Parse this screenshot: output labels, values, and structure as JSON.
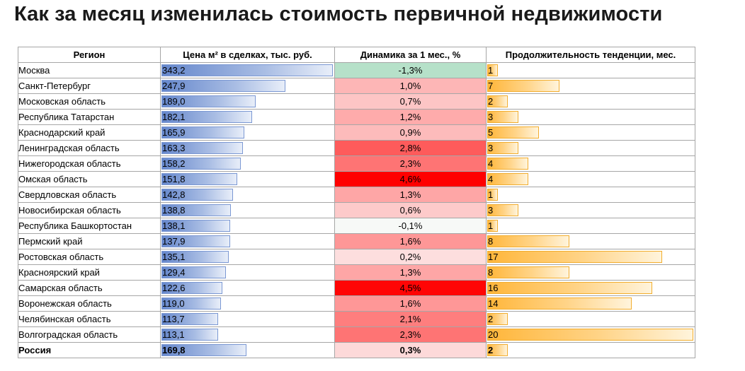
{
  "title": "Как за месяц изменилась стоимость первичной недвижимости",
  "headers": {
    "region": "Регион",
    "price": "Цена м² в сделках, тыс. руб.",
    "dynamics": "Динамика за 1 мес., %",
    "duration": "Продолжительность тенденции, мес."
  },
  "colors": {
    "negative": "#b6e1c9",
    "positive_low": "#fde8e8",
    "positive_high": "#ff0000",
    "price_bar": "#6587cc",
    "duration_bar": "#ffb63a"
  },
  "scales": {
    "price_max": 343.2,
    "duration_max": 20
  },
  "rows": [
    {
      "region": "Москва",
      "price": "343,2",
      "price_value": 343.2,
      "dynamics": "-1,3%",
      "dynamics_value": -1.3,
      "duration": "1"
    },
    {
      "region": "Санкт-Петербург",
      "price": "247,9",
      "price_value": 247.9,
      "dynamics": "1,0%",
      "dynamics_value": 1.0,
      "duration": "7"
    },
    {
      "region": "Московская область",
      "price": "189,0",
      "price_value": 189.0,
      "dynamics": "0,7%",
      "dynamics_value": 0.7,
      "duration": "2"
    },
    {
      "region": "Республика Татарстан",
      "price": "182,1",
      "price_value": 182.1,
      "dynamics": "1,2%",
      "dynamics_value": 1.2,
      "duration": "3"
    },
    {
      "region": "Краснодарский край",
      "price": "165,9",
      "price_value": 165.9,
      "dynamics": "0,9%",
      "dynamics_value": 0.9,
      "duration": "5"
    },
    {
      "region": "Ленинградская область",
      "price": "163,3",
      "price_value": 163.3,
      "dynamics": "2,8%",
      "dynamics_value": 2.8,
      "duration": "3"
    },
    {
      "region": "Нижегородская область",
      "price": "158,2",
      "price_value": 158.2,
      "dynamics": "2,3%",
      "dynamics_value": 2.3,
      "duration": "4"
    },
    {
      "region": "Омская область",
      "price": "151,8",
      "price_value": 151.8,
      "dynamics": "4,6%",
      "dynamics_value": 4.6,
      "duration": "4"
    },
    {
      "region": "Свердловская область",
      "price": "142,8",
      "price_value": 142.8,
      "dynamics": "1,3%",
      "dynamics_value": 1.3,
      "duration": "1"
    },
    {
      "region": "Новосибирская область",
      "price": "138,8",
      "price_value": 138.8,
      "dynamics": "0,6%",
      "dynamics_value": 0.6,
      "duration": "3"
    },
    {
      "region": "Республика Башкортостан",
      "price": "138,1",
      "price_value": 138.1,
      "dynamics": "-0,1%",
      "dynamics_value": -0.1,
      "duration": "1"
    },
    {
      "region": "Пермский край",
      "price": "137,9",
      "price_value": 137.9,
      "dynamics": "1,6%",
      "dynamics_value": 1.6,
      "duration": "8"
    },
    {
      "region": "Ростовская область",
      "price": "135,1",
      "price_value": 135.1,
      "dynamics": "0,2%",
      "dynamics_value": 0.2,
      "duration": "17"
    },
    {
      "region": "Красноярский край",
      "price": "129,4",
      "price_value": 129.4,
      "dynamics": "1,3%",
      "dynamics_value": 1.3,
      "duration": "8"
    },
    {
      "region": "Самарская область",
      "price": "122,6",
      "price_value": 122.6,
      "dynamics": "4,5%",
      "dynamics_value": 4.5,
      "duration": "16"
    },
    {
      "region": "Воронежская область",
      "price": "119,0",
      "price_value": 119.0,
      "dynamics": "1,6%",
      "dynamics_value": 1.6,
      "duration": "14"
    },
    {
      "region": "Челябинская область",
      "price": "113,7",
      "price_value": 113.7,
      "dynamics": "2,1%",
      "dynamics_value": 2.1,
      "duration": "2"
    },
    {
      "region": "Волгоградская область",
      "price": "113,1",
      "price_value": 113.1,
      "dynamics": "2,3%",
      "dynamics_value": 2.3,
      "duration": "20"
    }
  ],
  "total": {
    "region": "Россия",
    "price": "169,8",
    "price_value": 169.8,
    "dynamics": "0,3%",
    "dynamics_value": 0.3,
    "duration": "2"
  }
}
